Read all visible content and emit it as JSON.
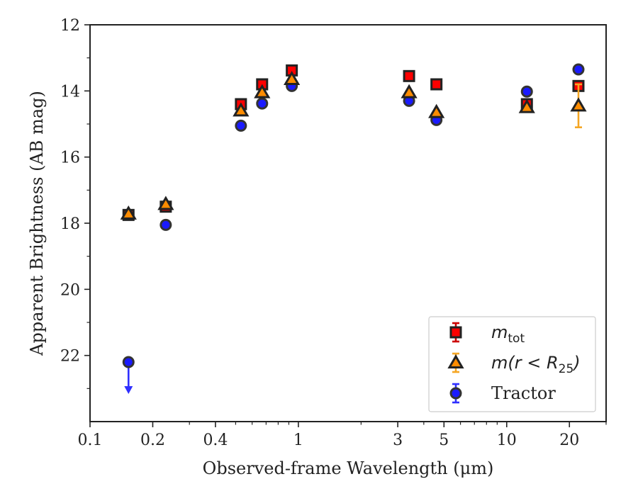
{
  "chart_data": {
    "type": "scatter",
    "xscale": "log",
    "xlim": [
      0.1,
      30
    ],
    "ylim": [
      12,
      24
    ],
    "y_inverted": true,
    "xlabel": "Observed-frame Wavelength (μm)",
    "ylabel": "Apparent Brightness (AB mag)",
    "x_tick_labels": [
      {
        "value": 0.1,
        "label": "0.1"
      },
      {
        "value": 0.2,
        "label": "0.2"
      },
      {
        "value": 0.4,
        "label": "0.4"
      },
      {
        "value": 1,
        "label": "1"
      },
      {
        "value": 3,
        "label": "3"
      },
      {
        "value": 5,
        "label": "5"
      },
      {
        "value": 10,
        "label": "10"
      },
      {
        "value": 20,
        "label": "20"
      }
    ],
    "x_minor_ticks": [
      0.3,
      0.5,
      0.6,
      0.7,
      0.8,
      0.9,
      2,
      4,
      6,
      7,
      8,
      9,
      30
    ],
    "y_tick_labels": [
      "12",
      "14",
      "16",
      "18",
      "20",
      "22"
    ],
    "y_ticks": [
      12,
      14,
      16,
      18,
      20,
      22
    ],
    "y_minor_ticks": [
      13,
      15,
      17,
      19,
      21,
      23
    ],
    "legend_position": "lower right",
    "series": [
      {
        "name": "m_tot",
        "marker": "square",
        "color": "#ff0000",
        "edge_color": "#222222",
        "error_color": "#cc0000",
        "points": [
          {
            "x": 0.153,
            "y": 17.75,
            "err": 0.05
          },
          {
            "x": 0.231,
            "y": 17.5,
            "err": 0.05
          },
          {
            "x": 0.53,
            "y": 14.4,
            "err": 0.03
          },
          {
            "x": 0.67,
            "y": 13.8,
            "err": 0.03
          },
          {
            "x": 0.93,
            "y": 13.38,
            "err": 0.03
          },
          {
            "x": 3.4,
            "y": 13.55,
            "err": 0.04
          },
          {
            "x": 4.6,
            "y": 13.8,
            "err": 0.04
          },
          {
            "x": 12.5,
            "y": 14.4,
            "err": 0.05
          },
          {
            "x": 22.1,
            "y": 13.85,
            "err": 0.05
          }
        ]
      },
      {
        "name": "m(r<R25)",
        "marker": "triangle",
        "color": "#ff8c00",
        "edge_color": "#222222",
        "error_color": "#f5a623",
        "points": [
          {
            "x": 0.153,
            "y": 17.72,
            "err": 0.05
          },
          {
            "x": 0.231,
            "y": 17.43,
            "err": 0.05
          },
          {
            "x": 0.53,
            "y": 14.6,
            "err": 0.03
          },
          {
            "x": 0.67,
            "y": 14.05,
            "err": 0.03
          },
          {
            "x": 0.93,
            "y": 13.65,
            "err": 0.03
          },
          {
            "x": 3.4,
            "y": 14.05,
            "err": 0.04
          },
          {
            "x": 4.6,
            "y": 14.65,
            "err": 0.04
          },
          {
            "x": 12.5,
            "y": 14.5,
            "err": 0.05
          },
          {
            "x": 22.1,
            "y": 14.45,
            "err": 0.65
          }
        ]
      },
      {
        "name": "Tractor",
        "marker": "circle",
        "color": "#1a1aff",
        "edge_color": "#333333",
        "error_color": "#2f2fff",
        "points": [
          {
            "x": 0.153,
            "y": 22.2,
            "err": 0,
            "upper_limit": true
          },
          {
            "x": 0.231,
            "y": 18.05,
            "err": 0.05
          },
          {
            "x": 0.53,
            "y": 15.05,
            "err": 0.03
          },
          {
            "x": 0.67,
            "y": 14.38,
            "err": 0.03
          },
          {
            "x": 0.93,
            "y": 13.85,
            "err": 0.03
          },
          {
            "x": 3.4,
            "y": 14.3,
            "err": 0.04
          },
          {
            "x": 4.6,
            "y": 14.88,
            "err": 0.04
          },
          {
            "x": 12.5,
            "y": 14.02,
            "err": 0.05
          },
          {
            "x": 22.1,
            "y": 13.35,
            "err": 0.05
          }
        ]
      }
    ],
    "legend": [
      {
        "series": "m_tot",
        "label_main": "m",
        "label_sub": "tot"
      },
      {
        "series": "m(r<R25)",
        "label_main": "m(r < R",
        "label_sub": "25",
        "label_tail": ")"
      },
      {
        "series": "Tractor",
        "label_main": "Tractor"
      }
    ]
  }
}
